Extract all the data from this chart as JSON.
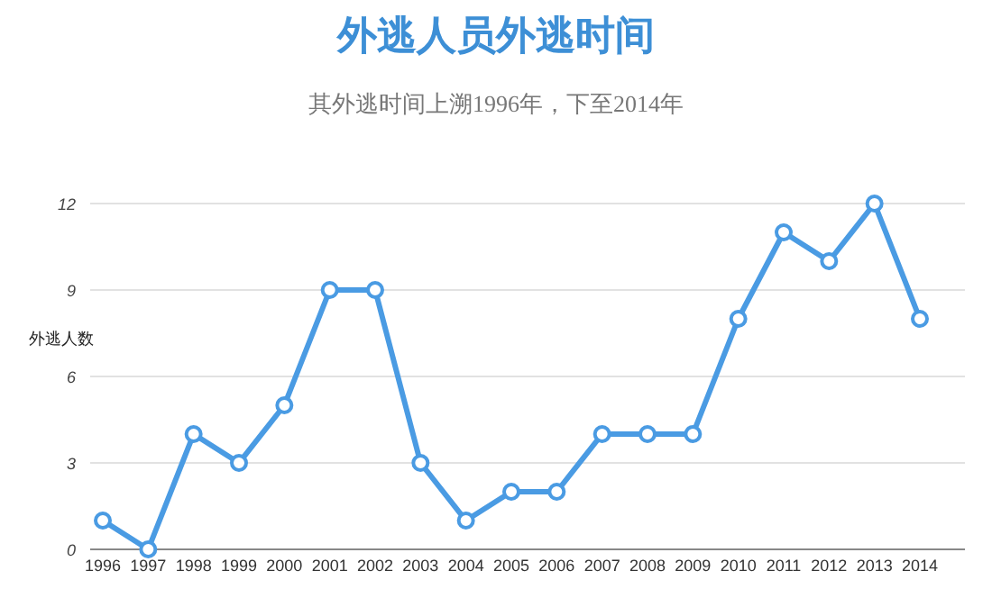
{
  "chart_data": {
    "type": "line",
    "title": "外逃人员外逃时间",
    "subtitle": "其外逃时间上溯1996年，下至2014年",
    "ylabel": "外逃人数",
    "categories": [
      "1996",
      "1997",
      "1998",
      "1999",
      "2000",
      "2001",
      "2002",
      "2003",
      "2004",
      "2005",
      "2006",
      "2007",
      "2008",
      "2009",
      "2010",
      "2011",
      "2012",
      "2013",
      "2014"
    ],
    "series": [
      {
        "color": "#4a9be3",
        "values": [
          1,
          0,
          4,
          3,
          5,
          9,
          9,
          3,
          1,
          2,
          2,
          4,
          4,
          4,
          8,
          11,
          10,
          12,
          8
        ]
      }
    ],
    "ylim": [
      0,
      12
    ],
    "yticks": [
      0,
      3,
      6,
      9,
      12
    ],
    "grid": "y",
    "marker": "circle",
    "line_style": "solid"
  }
}
